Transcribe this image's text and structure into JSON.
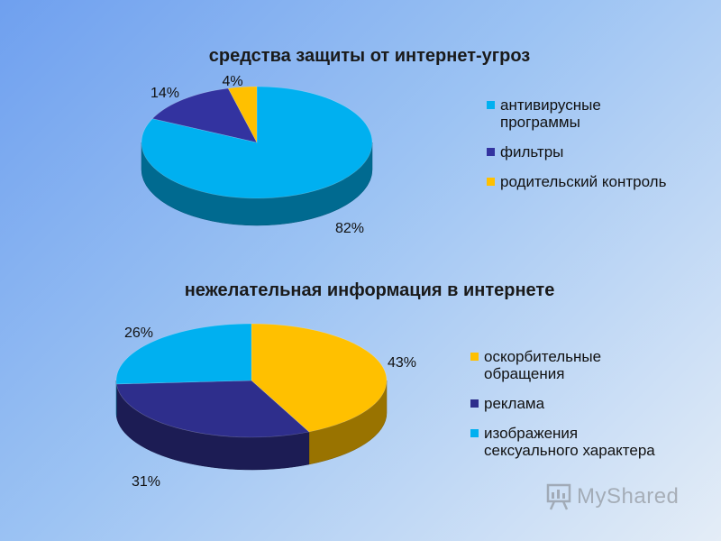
{
  "chart_data": [
    {
      "type": "pie",
      "title": "средства защиты от интернет-угроз",
      "categories": [
        "антивирусные программы",
        "фильтры",
        "родительский контроль"
      ],
      "legend_labels": [
        "антивирусные\nпрограммы",
        "фильтры",
        "родительский контроль"
      ],
      "values": [
        82,
        14,
        4
      ],
      "data_labels": [
        "82%",
        "14%",
        "4%"
      ],
      "colors": [
        "#00b0f0",
        "#3333a0",
        "#ffc000"
      ],
      "legend_position": "right"
    },
    {
      "type": "pie",
      "title": "нежелательная информация в интернете",
      "categories": [
        "оскорбительные обращения",
        "реклама",
        "изображения сексуального характера"
      ],
      "legend_labels": [
        "оскорбительные\nобращения",
        "реклама",
        "изображения\nсексуального характера"
      ],
      "values": [
        43,
        31,
        26
      ],
      "data_labels": [
        "43%",
        "31%",
        "26%"
      ],
      "colors": [
        "#ffc000",
        "#2e2e8c",
        "#00b0f0"
      ],
      "legend_position": "right"
    }
  ],
  "watermark": {
    "text": "MyShared",
    "icon": "presentation-board-icon"
  }
}
